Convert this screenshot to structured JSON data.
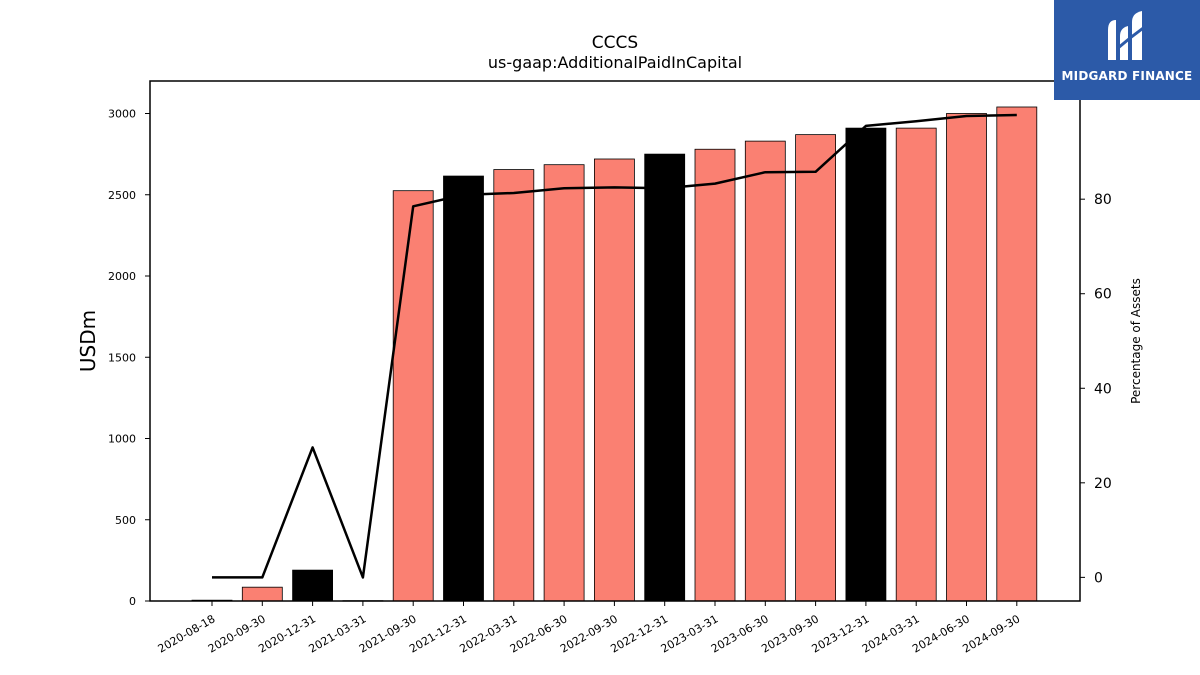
{
  "logo": {
    "text": "MIDGARD FINANCE",
    "bg_color": "#2c5aa8"
  },
  "chart_data": {
    "type": "bar+line",
    "title": "CCCS",
    "subtitle": "us-gaap:AdditionalPaidInCapital",
    "ylabel": "USDm",
    "y2label": "Percentage of Assets",
    "ylim": [
      0,
      3200
    ],
    "y2lim": [
      -5,
      105
    ],
    "yticks": [
      0,
      500,
      1000,
      1500,
      2000,
      2500,
      3000
    ],
    "y2ticks": [
      0,
      20,
      40,
      60,
      80
    ],
    "categories": [
      "2020-08-18",
      "2020-09-30",
      "2020-12-31",
      "2021-03-31",
      "2021-09-30",
      "2021-12-31",
      "2022-03-31",
      "2022-06-30",
      "2022-09-30",
      "2022-12-31",
      "2023-03-31",
      "2023-06-30",
      "2023-09-30",
      "2023-12-31",
      "2024-03-31",
      "2024-06-30",
      "2024-09-30"
    ],
    "bar_values": [
      5,
      85,
      190,
      2,
      2525,
      2615,
      2655,
      2685,
      2720,
      2750,
      2780,
      2830,
      2870,
      2910,
      2910,
      3000,
      3040
    ],
    "bar_highlight": [
      false,
      false,
      true,
      false,
      false,
      true,
      false,
      false,
      false,
      true,
      false,
      false,
      false,
      true,
      false,
      false,
      false
    ],
    "line_values": [
      0,
      0,
      27.5,
      0,
      78.5,
      80.9,
      81.3,
      82.3,
      82.5,
      82.3,
      83.3,
      85.7,
      85.8,
      95.5,
      96.5,
      97.6,
      97.8
    ],
    "bar_color": "#fa8072",
    "highlight_color": "#000000",
    "line_color": "#000000",
    "grid": false
  }
}
